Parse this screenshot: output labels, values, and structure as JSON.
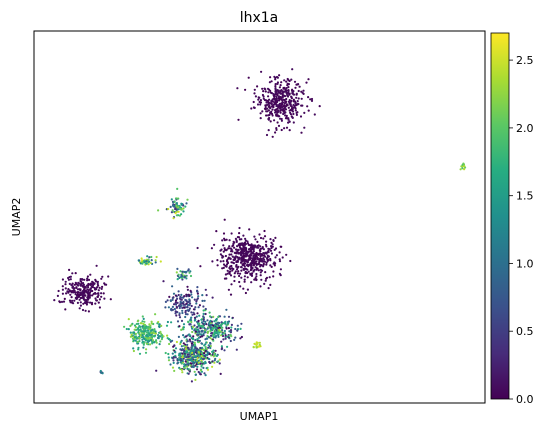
{
  "chart_data": {
    "type": "scatter",
    "title": "lhx1a",
    "xlabel": "UMAP1",
    "ylabel": "UMAP2",
    "x_ticks": [],
    "y_ticks": [],
    "colormap": "viridis",
    "colorbar": {
      "min": 0.0,
      "max": 2.7,
      "ticks": [
        0.0,
        0.5,
        1.0,
        1.5,
        2.0,
        2.5
      ],
      "tick_labels": [
        "0.0",
        "0.5",
        "1.0",
        "1.5",
        "2.0",
        "2.5"
      ]
    },
    "xlim": [
      0,
      100
    ],
    "ylim": [
      0,
      100
    ],
    "clusters": [
      {
        "cx": 54.5,
        "cy": 81.0,
        "rx": 6.0,
        "ry": 7.0,
        "n": 380,
        "expr": [
          0.0,
          0.1
        ]
      },
      {
        "cx": 95.0,
        "cy": 63.5,
        "rx": 0.8,
        "ry": 0.8,
        "n": 14,
        "expr": [
          1.8,
          2.5
        ]
      },
      {
        "cx": 31.5,
        "cy": 53.0,
        "rx": 2.2,
        "ry": 3.2,
        "n": 70,
        "expr": [
          0.3,
          2.6
        ]
      },
      {
        "cx": 47.5,
        "cy": 39.0,
        "rx": 7.5,
        "ry": 6.5,
        "n": 520,
        "expr": [
          0.0,
          0.1
        ]
      },
      {
        "cx": 11.0,
        "cy": 30.0,
        "rx": 4.8,
        "ry": 4.5,
        "n": 260,
        "expr": [
          0.0,
          0.1
        ]
      },
      {
        "cx": 25.0,
        "cy": 38.0,
        "rx": 2.2,
        "ry": 1.6,
        "n": 40,
        "expr": [
          0.5,
          2.6
        ]
      },
      {
        "cx": 33.0,
        "cy": 34.5,
        "rx": 1.8,
        "ry": 1.8,
        "n": 35,
        "expr": [
          0.5,
          2.4
        ]
      },
      {
        "cx": 25.0,
        "cy": 18.5,
        "rx": 4.2,
        "ry": 4.2,
        "n": 260,
        "expr": [
          1.2,
          2.4
        ]
      },
      {
        "cx": 35.5,
        "cy": 12.5,
        "rx": 5.5,
        "ry": 5.0,
        "n": 420,
        "expr": [
          0.0,
          2.5
        ]
      },
      {
        "cx": 39.0,
        "cy": 20.0,
        "rx": 6.5,
        "ry": 4.2,
        "n": 320,
        "expr": [
          0.0,
          2.3
        ]
      },
      {
        "cx": 33.5,
        "cy": 27.0,
        "rx": 4.5,
        "ry": 4.0,
        "n": 140,
        "expr": [
          0.0,
          1.0
        ]
      },
      {
        "cx": 49.5,
        "cy": 15.5,
        "rx": 1.0,
        "ry": 1.3,
        "n": 20,
        "expr": [
          2.2,
          2.6
        ]
      },
      {
        "cx": 15.0,
        "cy": 8.0,
        "rx": 0.6,
        "ry": 0.6,
        "n": 6,
        "expr": [
          0.0,
          1.5
        ]
      }
    ]
  }
}
